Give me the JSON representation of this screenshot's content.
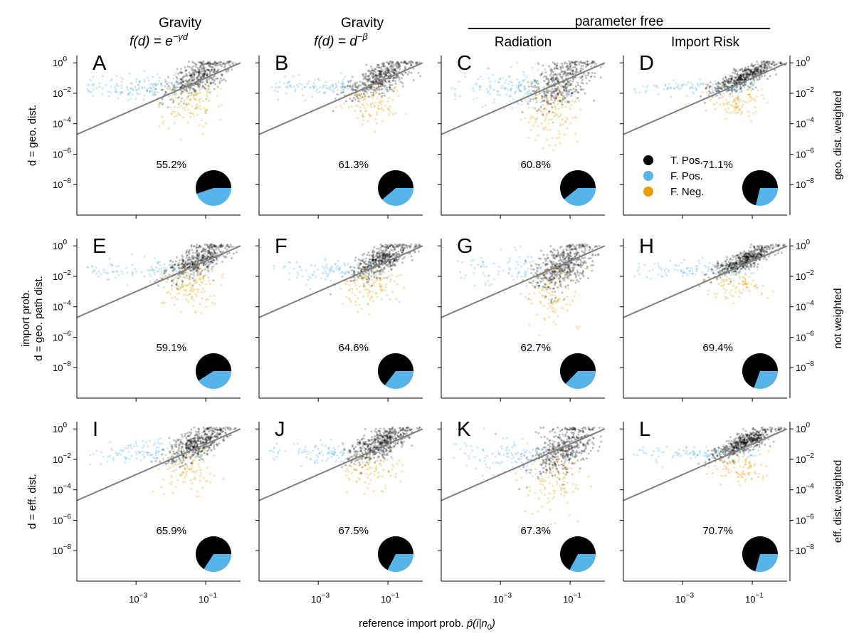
{
  "figure": {
    "colors": {
      "true_positive": "#000000",
      "false_positive": "#56B4E9",
      "false_negative": "#E69F00",
      "reference_line": "#808080"
    },
    "column_titles": [
      {
        "line1": "Gravity",
        "line2_base": "f(d) = e",
        "line2_exp": "−γd"
      },
      {
        "line1": "Gravity",
        "line2_base": "f(d) = d",
        "line2_exp": "−β"
      },
      {
        "line1": "Radiation"
      },
      {
        "line1": "Import Risk"
      }
    ],
    "group_header": "parameter free",
    "row_labels_left": [
      {
        "lines": [
          "d = geo. dist."
        ]
      },
      {
        "lines": [
          "import prob.",
          "d = geo. path dist."
        ]
      },
      {
        "lines": [
          "d = eff. dist."
        ]
      }
    ],
    "row_labels_right": [
      "geo. dist. weighted",
      "not weighted",
      "eff. dist. weighted"
    ],
    "xlabel": {
      "text": "reference import prob. ",
      "math_base": "p̂(i|n",
      "math_sub": "0",
      "math_tail": ")"
    },
    "tick_labels": {
      "x": [
        {
          "base": "10",
          "exp": "−3"
        },
        {
          "base": "10",
          "exp": "−1"
        }
      ],
      "y": [
        {
          "base": "10",
          "exp": "0"
        },
        {
          "base": "10",
          "exp": "−2"
        },
        {
          "base": "10",
          "exp": "−4"
        },
        {
          "base": "10",
          "exp": "−6"
        },
        {
          "base": "10",
          "exp": "−8"
        }
      ]
    },
    "legend": [
      {
        "label": "T. Pos.",
        "color": "#000000"
      },
      {
        "label": "F. Pos.",
        "color": "#56B4E9"
      },
      {
        "label": "F. Neg.",
        "color": "#E69F00"
      }
    ]
  },
  "chart_data": [
    {
      "panel": "A",
      "type": "scatter",
      "x_scale": "log",
      "y_scale": "log",
      "xlim": [
        2e-05,
        1
      ],
      "ylim": [
        1e-10,
        3
      ],
      "true_positive_pct": 55.2,
      "pct_label": "55.2%",
      "reference_line": "y = x",
      "spread": 1.2,
      "y_bias": 0.0
    },
    {
      "panel": "B",
      "type": "scatter",
      "x_scale": "log",
      "y_scale": "log",
      "xlim": [
        2e-05,
        1
      ],
      "ylim": [
        1e-10,
        3
      ],
      "true_positive_pct": 61.3,
      "pct_label": "61.3%",
      "reference_line": "y = x",
      "spread": 1.1,
      "y_bias": 0.0
    },
    {
      "panel": "C",
      "type": "scatter",
      "x_scale": "log",
      "y_scale": "log",
      "xlim": [
        2e-05,
        1
      ],
      "ylim": [
        1e-10,
        3
      ],
      "true_positive_pct": 60.8,
      "pct_label": "60.8%",
      "reference_line": "y = x",
      "spread": 1.7,
      "y_bias": -0.3
    },
    {
      "panel": "D",
      "type": "scatter",
      "x_scale": "log",
      "y_scale": "log",
      "xlim": [
        2e-05,
        1
      ],
      "ylim": [
        1e-10,
        3
      ],
      "true_positive_pct": 71.1,
      "pct_label": "71.1%",
      "reference_line": "y = x",
      "spread": 0.7,
      "y_bias": 0.0,
      "legend": true
    },
    {
      "panel": "E",
      "type": "scatter",
      "x_scale": "log",
      "y_scale": "log",
      "xlim": [
        2e-05,
        1
      ],
      "ylim": [
        1e-10,
        3
      ],
      "true_positive_pct": 59.1,
      "pct_label": "59.1%",
      "reference_line": "y = x",
      "spread": 1.1,
      "y_bias": 0.0
    },
    {
      "panel": "F",
      "type": "scatter",
      "x_scale": "log",
      "y_scale": "log",
      "xlim": [
        2e-05,
        1
      ],
      "ylim": [
        1e-10,
        3
      ],
      "true_positive_pct": 64.6,
      "pct_label": "64.6%",
      "reference_line": "y = x",
      "spread": 1.0,
      "y_bias": 0.0
    },
    {
      "panel": "G",
      "type": "scatter",
      "x_scale": "log",
      "y_scale": "log",
      "xlim": [
        2e-05,
        1
      ],
      "ylim": [
        1e-10,
        3
      ],
      "true_positive_pct": 62.7,
      "pct_label": "62.7%",
      "reference_line": "y = x",
      "spread": 1.6,
      "y_bias": -0.3
    },
    {
      "panel": "H",
      "type": "scatter",
      "x_scale": "log",
      "y_scale": "log",
      "xlim": [
        2e-05,
        1
      ],
      "ylim": [
        1e-10,
        3
      ],
      "true_positive_pct": 69.4,
      "pct_label": "69.4%",
      "reference_line": "y = x",
      "spread": 0.7,
      "y_bias": 0.0
    },
    {
      "panel": "I",
      "type": "scatter",
      "x_scale": "log",
      "y_scale": "log",
      "xlim": [
        2e-05,
        1
      ],
      "ylim": [
        1e-10,
        3
      ],
      "true_positive_pct": 65.9,
      "pct_label": "65.9%",
      "reference_line": "y = x",
      "spread": 1.1,
      "y_bias": 0.0
    },
    {
      "panel": "J",
      "type": "scatter",
      "x_scale": "log",
      "y_scale": "log",
      "xlim": [
        2e-05,
        1
      ],
      "ylim": [
        1e-10,
        3
      ],
      "true_positive_pct": 67.5,
      "pct_label": "67.5%",
      "reference_line": "y = x",
      "spread": 1.0,
      "y_bias": 0.0
    },
    {
      "panel": "K",
      "type": "scatter",
      "x_scale": "log",
      "y_scale": "log",
      "xlim": [
        2e-05,
        1
      ],
      "ylim": [
        1e-10,
        3
      ],
      "true_positive_pct": 67.3,
      "pct_label": "67.3%",
      "reference_line": "y = x",
      "spread": 1.7,
      "y_bias": -0.4
    },
    {
      "panel": "L",
      "type": "scatter",
      "x_scale": "log",
      "y_scale": "log",
      "xlim": [
        2e-05,
        1
      ],
      "ylim": [
        1e-10,
        3
      ],
      "true_positive_pct": 70.7,
      "pct_label": "70.7%",
      "reference_line": "y = x",
      "spread": 0.7,
      "y_bias": 0.0
    }
  ]
}
